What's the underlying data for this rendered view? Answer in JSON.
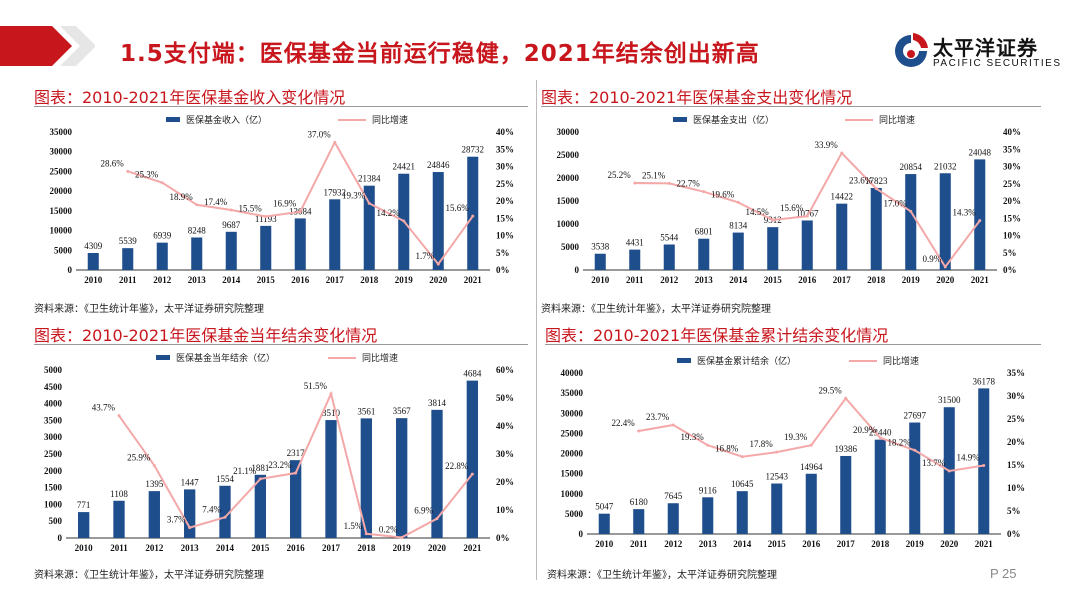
{
  "header": {
    "title": "1.5支付端：医保基金当前运行稳健，2021年结余创出新高",
    "logo_cn": "太平洋证券",
    "logo_en": "PACIFIC SECURITIES"
  },
  "page_number": "P 25",
  "colors": {
    "bar": "#1f4e8c",
    "line": "#f4a8a8",
    "title_red": "#c8161d"
  },
  "panels": [
    {
      "title": "图表：2010-2021年医保基金收入变化情况",
      "source": "资料来源：《卫生统计年鉴》，太平洋证券研究院整理"
    },
    {
      "title": "图表：2010-2021年医保基金支出变化情况",
      "source": "资料来源：《卫生统计年鉴》，太平洋证券研究院整理"
    },
    {
      "title": "图表：2010-2021年医保基金当年结余变化情况",
      "source": "资料来源：《卫生统计年鉴》，太平洋证券研究院整理"
    },
    {
      "title": "图表：2010-2021年医保基金累计结余变化情况",
      "source": "资料来源：《卫生统计年鉴》，太平洋证券研究院整理"
    }
  ],
  "chart_data": [
    {
      "type": "bar",
      "categories": [
        "2010",
        "2011",
        "2012",
        "2013",
        "2014",
        "2015",
        "2016",
        "2017",
        "2018",
        "2019",
        "2020",
        "2021"
      ],
      "series": [
        {
          "name": "医保基金收入（亿）",
          "type": "bar",
          "axis": "left",
          "values": [
            4309,
            5539,
            6939,
            8248,
            9687,
            11193,
            13084,
            17932,
            21384,
            24421,
            24846,
            28732
          ]
        },
        {
          "name": "同比增速",
          "type": "line",
          "axis": "right",
          "values": [
            null,
            28.6,
            25.3,
            18.9,
            17.4,
            15.5,
            16.9,
            37.0,
            19.3,
            14.2,
            1.7,
            15.6
          ],
          "labels": [
            "",
            "28.6%",
            "25.3%",
            "18.9%",
            "17.4%",
            "15.5%",
            "16.9%",
            "37.0%",
            "19.3%",
            "14.2%",
            "1.7%",
            "15.6%"
          ]
        }
      ],
      "ylim": [
        0,
        35000
      ],
      "yticks": [
        "0",
        "5000",
        "10000",
        "15000",
        "20000",
        "25000",
        "30000",
        "35000"
      ],
      "y2lim": [
        0,
        40
      ],
      "y2ticks": [
        "0%",
        "5%",
        "10%",
        "15%",
        "20%",
        "25%",
        "30%",
        "35%",
        "40%"
      ],
      "legend": "top-center"
    },
    {
      "type": "bar",
      "categories": [
        "2010",
        "2011",
        "2012",
        "2013",
        "2014",
        "2015",
        "2016",
        "2017",
        "2018",
        "2019",
        "2020",
        "2021"
      ],
      "series": [
        {
          "name": "医保基金支出（亿）",
          "type": "bar",
          "axis": "left",
          "values": [
            3538,
            4431,
            5544,
            6801,
            8134,
            9312,
            10767,
            14422,
            17823,
            20854,
            21032,
            24048
          ]
        },
        {
          "name": "同比增速",
          "type": "line",
          "axis": "right",
          "values": [
            null,
            25.2,
            25.1,
            22.7,
            19.6,
            14.5,
            15.6,
            33.9,
            23.6,
            17.0,
            0.9,
            14.3
          ],
          "labels": [
            "",
            "25.2%",
            "25.1%",
            "22.7%",
            "19.6%",
            "14.5%",
            "15.6%",
            "33.9%",
            "23.6%",
            "17.0%",
            "0.9%",
            "14.3%"
          ]
        }
      ],
      "ylim": [
        0,
        30000
      ],
      "yticks": [
        "0",
        "5000",
        "10000",
        "15000",
        "20000",
        "25000",
        "30000"
      ],
      "y2lim": [
        0,
        40
      ],
      "y2ticks": [
        "0%",
        "5%",
        "10%",
        "15%",
        "20%",
        "25%",
        "30%",
        "35%",
        "40%"
      ],
      "legend": "top-center"
    },
    {
      "type": "bar",
      "categories": [
        "2010",
        "2011",
        "2012",
        "2013",
        "2014",
        "2015",
        "2016",
        "2017",
        "2018",
        "2019",
        "2020",
        "2021"
      ],
      "series": [
        {
          "name": "医保基金当年结余（亿）",
          "type": "bar",
          "axis": "left",
          "values": [
            771,
            1108,
            1395,
            1447,
            1554,
            1881,
            2317,
            3510,
            3561,
            3567,
            3814,
            4684
          ]
        },
        {
          "name": "同比增速",
          "type": "line",
          "axis": "right",
          "values": [
            null,
            43.7,
            25.9,
            3.7,
            7.4,
            21.1,
            23.2,
            51.5,
            1.5,
            0.2,
            6.9,
            22.8
          ],
          "labels": [
            "",
            "43.7%",
            "25.9%",
            "3.7%",
            "7.4%",
            "21.1%",
            "23.2%",
            "51.5%",
            "1.5%",
            "0.2%",
            "6.9%",
            "22.8%"
          ]
        }
      ],
      "ylim": [
        0,
        5000
      ],
      "yticks": [
        "0",
        "500",
        "1000",
        "1500",
        "2000",
        "2500",
        "3000",
        "3500",
        "4000",
        "4500",
        "5000"
      ],
      "y2lim": [
        0,
        60
      ],
      "y2ticks": [
        "0%",
        "10%",
        "20%",
        "30%",
        "40%",
        "50%",
        "60%"
      ],
      "legend": "top-center"
    },
    {
      "type": "bar",
      "categories": [
        "2010",
        "2011",
        "2012",
        "2013",
        "2014",
        "2015",
        "2016",
        "2017",
        "2018",
        "2019",
        "2020",
        "2021"
      ],
      "series": [
        {
          "name": "医保基金累计结余（亿）",
          "type": "bar",
          "axis": "left",
          "values": [
            5047,
            6180,
            7645,
            9116,
            10645,
            12543,
            14964,
            19386,
            23440,
            27697,
            31500,
            36178
          ]
        },
        {
          "name": "同比增速",
          "type": "line",
          "axis": "right",
          "values": [
            null,
            22.4,
            23.7,
            19.3,
            16.8,
            17.8,
            19.3,
            29.5,
            20.9,
            18.2,
            13.7,
            14.9
          ],
          "labels": [
            "",
            "22.4%",
            "23.7%",
            "19.3%",
            "16.8%",
            "17.8%",
            "19.3%",
            "29.5%",
            "20.9%",
            "18.2%",
            "13.7%",
            "14.9%"
          ]
        }
      ],
      "ylim": [
        0,
        40000
      ],
      "yticks": [
        "0",
        "5000",
        "10000",
        "15000",
        "20000",
        "25000",
        "30000",
        "35000",
        "40000"
      ],
      "y2lim": [
        0,
        35
      ],
      "y2ticks": [
        "0%",
        "5%",
        "10%",
        "15%",
        "20%",
        "25%",
        "30%",
        "35%"
      ],
      "legend": "top-center"
    }
  ]
}
